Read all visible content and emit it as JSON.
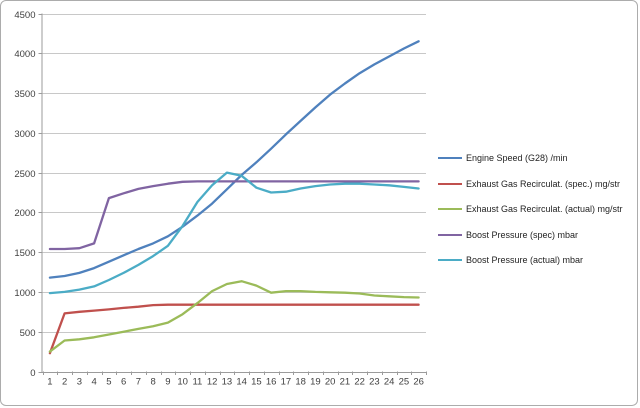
{
  "chart_data": {
    "type": "line",
    "title": "",
    "xlabel": "",
    "ylabel": "",
    "x_categories": [
      1,
      2,
      3,
      4,
      5,
      6,
      7,
      8,
      9,
      10,
      11,
      12,
      13,
      14,
      15,
      16,
      17,
      18,
      19,
      20,
      21,
      22,
      23,
      24,
      25,
      26
    ],
    "ylim": [
      0,
      4500
    ],
    "yticks": [
      0,
      500,
      1000,
      1500,
      2000,
      2500,
      3000,
      3500,
      4000,
      4500
    ],
    "grid": "horizontal gridlines on, vertical off",
    "legend_position": "right",
    "series": [
      {
        "name": "Engine Speed (G28)  /min",
        "color": "#4F81BD",
        "values": [
          1180,
          1200,
          1240,
          1300,
          1380,
          1460,
          1540,
          1610,
          1700,
          1820,
          1960,
          2110,
          2290,
          2470,
          2630,
          2800,
          2980,
          3150,
          3320,
          3480,
          3620,
          3750,
          3860,
          3960,
          4060,
          4150
        ]
      },
      {
        "name": "Exhaust Gas Recirculat. (spec.)  mg/str",
        "color": "#C0504D",
        "values": [
          230,
          730,
          750,
          765,
          780,
          800,
          815,
          835,
          840,
          840,
          840,
          840,
          840,
          840,
          840,
          840,
          840,
          840,
          840,
          840,
          840,
          840,
          840,
          840,
          840,
          840
        ]
      },
      {
        "name": "Exhaust Gas Recirculat. (actual)  mg/str",
        "color": "#9BBB59",
        "values": [
          250,
          390,
          405,
          430,
          465,
          500,
          535,
          570,
          615,
          720,
          860,
          1010,
          1100,
          1135,
          1080,
          990,
          1010,
          1010,
          1000,
          995,
          990,
          980,
          955,
          945,
          935,
          930
        ]
      },
      {
        "name": "Boost Pressure (spec)  mbar",
        "color": "#8064A2",
        "values": [
          1540,
          1540,
          1550,
          1610,
          2180,
          2240,
          2295,
          2330,
          2360,
          2385,
          2390,
          2390,
          2390,
          2390,
          2390,
          2390,
          2390,
          2390,
          2390,
          2390,
          2390,
          2390,
          2390,
          2390,
          2390,
          2390
        ]
      },
      {
        "name": "Boost Pressure (actual)  mbar",
        "color": "#4BACC6",
        "values": [
          985,
          1000,
          1030,
          1070,
          1150,
          1240,
          1340,
          1450,
          1580,
          1830,
          2130,
          2340,
          2500,
          2460,
          2310,
          2250,
          2260,
          2300,
          2330,
          2350,
          2360,
          2360,
          2350,
          2340,
          2320,
          2300
        ]
      }
    ]
  },
  "colors": {
    "background": "#FFFFFF",
    "gridline": "#C8C8C8",
    "axis": "#9B9B9B",
    "tick_text": "#3F3F3F",
    "frame_border": "#ACACAC"
  }
}
